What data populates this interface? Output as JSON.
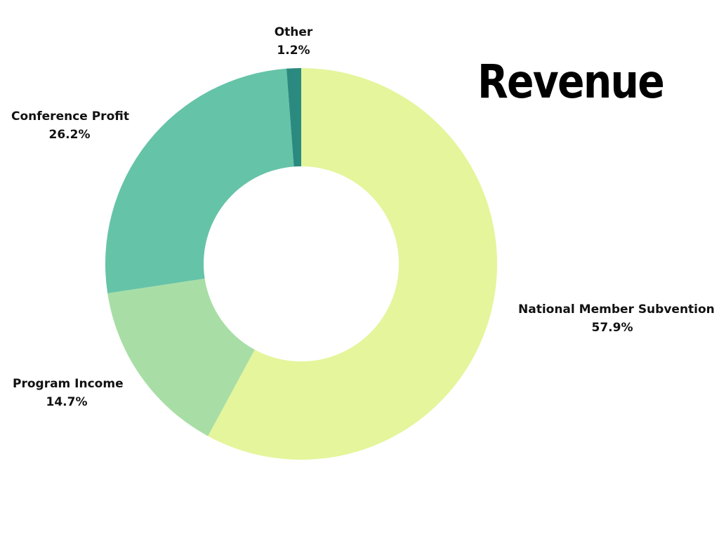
{
  "chart_data": {
    "type": "pie",
    "style": "donut",
    "title": "Revenue",
    "slices": [
      {
        "label": "National Member Subvention",
        "value": 57.9,
        "value_label": "57.9%",
        "color": "#e4f59b"
      },
      {
        "label": "Program Income",
        "value": 14.7,
        "value_label": "14.7%",
        "color": "#a8dea6"
      },
      {
        "label": "Conference Profit",
        "value": 26.2,
        "value_label": "26.2%",
        "color": "#65c3a8"
      },
      {
        "label": "Other",
        "value": 1.2,
        "value_label": "1.2%",
        "color": "#2b8a80"
      }
    ],
    "legend": "none",
    "grid": false
  }
}
